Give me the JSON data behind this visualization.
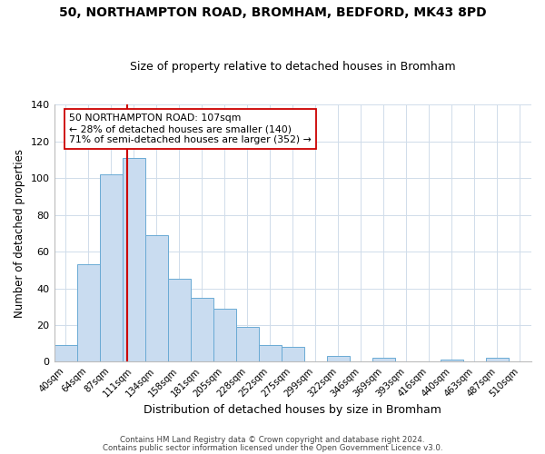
{
  "title1": "50, NORTHAMPTON ROAD, BROMHAM, BEDFORD, MK43 8PD",
  "title2": "Size of property relative to detached houses in Bromham",
  "xlabel": "Distribution of detached houses by size in Bromham",
  "ylabel": "Number of detached properties",
  "bar_labels": [
    "40sqm",
    "64sqm",
    "87sqm",
    "111sqm",
    "134sqm",
    "158sqm",
    "181sqm",
    "205sqm",
    "228sqm",
    "252sqm",
    "275sqm",
    "299sqm",
    "322sqm",
    "346sqm",
    "369sqm",
    "393sqm",
    "416sqm",
    "440sqm",
    "463sqm",
    "487sqm",
    "510sqm"
  ],
  "bar_values": [
    9,
    53,
    102,
    111,
    69,
    45,
    35,
    29,
    19,
    9,
    8,
    0,
    3,
    0,
    2,
    0,
    0,
    1,
    0,
    2,
    0
  ],
  "bar_color": "#c9dcf0",
  "bar_edge_color": "#6aaad4",
  "vline_x": 2.72,
  "vline_color": "#cc0000",
  "ylim": [
    0,
    140
  ],
  "yticks": [
    0,
    20,
    40,
    60,
    80,
    100,
    120,
    140
  ],
  "annotation_text": "50 NORTHAMPTON ROAD: 107sqm\n← 28% of detached houses are smaller (140)\n71% of semi-detached houses are larger (352) →",
  "annotation_box_color": "#ffffff",
  "annotation_box_edge": "#cc0000",
  "footer1": "Contains HM Land Registry data © Crown copyright and database right 2024.",
  "footer2": "Contains public sector information licensed under the Open Government Licence v3.0.",
  "background_color": "#ffffff",
  "grid_color": "#d0dcea"
}
